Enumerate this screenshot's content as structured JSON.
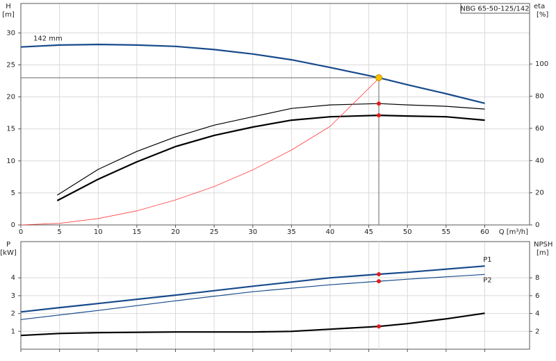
{
  "chart_data": [
    {
      "type": "line",
      "title": "NBG 65-50-125/142",
      "xlabel": "Q [m³/h]",
      "ylabel": "H",
      "yunit": "[m]",
      "y2label": "eta",
      "y2unit": "[%]",
      "xlim": [
        0,
        65.8
      ],
      "xticks": [
        0,
        5,
        10,
        15,
        20,
        25,
        30,
        35,
        40,
        45,
        50,
        55,
        60
      ],
      "show_xtick_labels": true,
      "ylim": [
        0,
        34.6
      ],
      "yticks": [
        0,
        5,
        10,
        15,
        20,
        25,
        30
      ],
      "y2lim": [
        0,
        137.6
      ],
      "y2ticks": [
        0,
        20,
        40,
        60,
        80,
        100
      ],
      "grid": true,
      "operating_point": {
        "x": 46.3,
        "y": 23.0,
        "color": "#f5c400"
      },
      "series": [
        {
          "name": "142 mm",
          "label_at": "start",
          "color": "#174a8b",
          "weight": "bold",
          "axis": "y",
          "x": [
            0,
            5,
            10,
            15,
            20,
            25,
            30,
            35,
            40,
            46.3,
            50,
            55,
            60
          ],
          "values": [
            27.8,
            28.1,
            28.2,
            28.1,
            27.9,
            27.4,
            26.7,
            25.8,
            24.6,
            23.0,
            21.9,
            20.5,
            19.0
          ]
        },
        {
          "color": "#000000",
          "weight": "normal",
          "axis": "y2",
          "x": [
            4.7,
            10,
            15,
            20,
            25,
            30,
            35,
            40,
            46.3,
            50,
            55,
            60
          ],
          "values": [
            18.5,
            34.5,
            45.7,
            54.7,
            62.0,
            67.2,
            72.4,
            74.6,
            75.4,
            74.6,
            73.7,
            72.0
          ]
        },
        {
          "color": "#000000",
          "weight": "bold",
          "axis": "y2",
          "x": [
            4.7,
            10,
            15,
            20,
            25,
            30,
            35,
            40,
            46.3,
            50,
            55,
            60
          ],
          "values": [
            15.1,
            28.4,
            39.2,
            48.7,
            55.6,
            60.8,
            65.1,
            67.2,
            68.1,
            67.7,
            67.2,
            65.1
          ]
        },
        {
          "color": "#ff3b3b",
          "weight": "thin",
          "axis": "y",
          "x": [
            0,
            5,
            10,
            15,
            20,
            25,
            30,
            35,
            40,
            46.3
          ],
          "values": [
            0,
            0.25,
            1.0,
            2.2,
            3.9,
            6.0,
            8.6,
            11.7,
            15.4,
            22.9
          ]
        }
      ]
    },
    {
      "type": "line",
      "ylabel": "P",
      "yunit": "[kW]",
      "y2label": "NPSH",
      "y2unit": "[m]",
      "xlim": [
        0,
        65.8
      ],
      "xticks": [
        0,
        5,
        10,
        15,
        20,
        25,
        30,
        35,
        40,
        45,
        50,
        55,
        60
      ],
      "show_xtick_labels": false,
      "ylim": [
        0,
        6.03
      ],
      "yticks": [
        1,
        2,
        3,
        4
      ],
      "y2lim": [
        0,
        12.06
      ],
      "y2ticks": [
        2,
        4,
        6,
        8
      ],
      "grid": true,
      "operating_point": {
        "x": 46.3
      },
      "series": [
        {
          "name": "P1",
          "label_at": "end-above",
          "color": "#174a8b",
          "weight": "bold",
          "axis": "y",
          "x": [
            0,
            5,
            10,
            20,
            30,
            40,
            46.3,
            50,
            60
          ],
          "values": [
            2.09,
            2.33,
            2.56,
            3.03,
            3.53,
            4.0,
            4.2,
            4.31,
            4.66
          ]
        },
        {
          "name": "P2",
          "label_at": "end-below",
          "color": "#174a8b",
          "weight": "normal",
          "axis": "y",
          "x": [
            0,
            10,
            20,
            30,
            40,
            46.3,
            50,
            60
          ],
          "values": [
            1.66,
            2.17,
            2.71,
            3.22,
            3.61,
            3.81,
            3.92,
            4.19
          ]
        },
        {
          "color": "#000000",
          "weight": "bold",
          "axis": "y2",
          "x": [
            0,
            5,
            10,
            20,
            30,
            35,
            40,
            46.3,
            50,
            55,
            60
          ],
          "values": [
            1.54,
            1.77,
            1.85,
            1.93,
            1.93,
            2.0,
            2.24,
            2.55,
            2.86,
            3.4,
            4.03
          ]
        }
      ]
    }
  ]
}
